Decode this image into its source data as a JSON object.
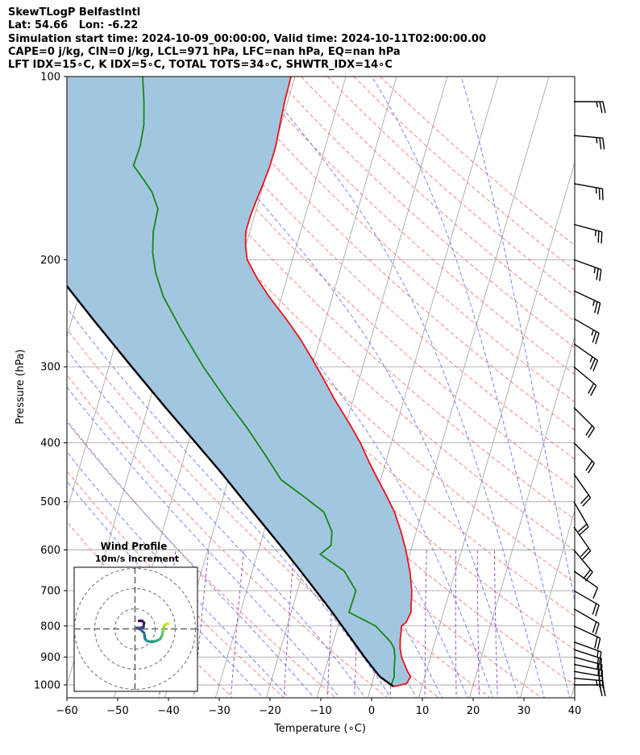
{
  "header": {
    "line1": "SkewTLogP BelfastIntl",
    "line2": "Lat: 54.66   Lon: -6.22",
    "line3": "Simulation start time: 2024-10-09_00:00:00, Valid time: 2024-10-11T02:00:00.00",
    "line4": "CAPE=0 j/kg, CIN=0 j/kg, LCL=971 hPa, LFC=nan hPa, EQ=nan hPa",
    "line5": "LFT IDX=15∘C, K IDX=5∘C, TOTAL TOTS=34∘C, SHWTR_IDX=14∘C"
  },
  "colors": {
    "temperature": "#e8141a",
    "dewpoint": "#138a13",
    "parcel": "#000000",
    "cape_fill": "#a3c6e0",
    "dry_adiabat": "#f07070",
    "moist_adiabat": "#6070f0",
    "mixing_ratio": "#9b3fc0",
    "isotherm": "#aaaaaa"
  },
  "chart_data": [
    {
      "type": "line",
      "subtype": "skew-t log-p",
      "xlabel": "Temperature (∘C)",
      "ylabel": "Pressure (hPa)",
      "xlim": [
        -60,
        40
      ],
      "ylim": [
        1050,
        100
      ],
      "y_scale": "log",
      "x_ticks": [
        "−60",
        "−50",
        "−40",
        "−30",
        "−20",
        "−10",
        "0",
        "10",
        "20",
        "30",
        "40"
      ],
      "x_tick_values": [
        -60,
        -50,
        -40,
        -30,
        -20,
        -10,
        0,
        10,
        20,
        30,
        40
      ],
      "y_ticks": [
        "1000",
        "900",
        "800",
        "700",
        "600",
        "500",
        "400",
        "300",
        "200",
        "100"
      ],
      "y_tick_values": [
        1000,
        900,
        800,
        700,
        600,
        500,
        400,
        300,
        200,
        100
      ],
      "grid": true,
      "series": [
        {
          "key": "temperature",
          "pressure": [
            1007,
            995,
            970,
            950,
            920,
            900,
            870,
            840,
            820,
            800,
            790,
            760,
            740,
            720,
            700,
            650,
            600,
            560,
            520,
            490,
            460,
            430,
            400,
            370,
            340,
            310,
            290,
            270,
            250,
            230,
            215,
            200,
            190,
            180,
            170,
            160,
            150,
            140,
            130,
            120,
            110,
            100
          ],
          "temp": [
            4.3,
            6.8,
            7.2,
            6.3,
            5.1,
            4.3,
            3.5,
            3.0,
            2.8,
            2.5,
            3.2,
            3.6,
            3.2,
            2.9,
            2.5,
            1.0,
            -1.0,
            -3.0,
            -5.4,
            -7.8,
            -10.5,
            -13.3,
            -16.1,
            -19.6,
            -23.6,
            -27.6,
            -30.6,
            -33.9,
            -37.9,
            -42.5,
            -45.8,
            -48.9,
            -50.0,
            -50.8,
            -50.8,
            -50.5,
            -50.1,
            -49.8,
            -49.8,
            -50.2,
            -50.6,
            -50.8
          ]
        },
        {
          "key": "dewpoint",
          "pressure": [
            1007,
            995,
            970,
            940,
            900,
            870,
            850,
            800,
            760,
            700,
            650,
            610,
            590,
            560,
            520,
            490,
            460,
            420,
            380,
            340,
            300,
            260,
            230,
            210,
            195,
            180,
            165,
            155,
            148,
            140,
            130,
            120,
            110,
            100
          ],
          "temp": [
            4.3,
            3.9,
            4.0,
            3.5,
            3.0,
            2.3,
            1.3,
            -2.6,
            -8.6,
            -8.5,
            -11.9,
            -17.6,
            -16.0,
            -16.6,
            -19.3,
            -24.2,
            -29.6,
            -34.0,
            -39.0,
            -45.0,
            -51.4,
            -58.0,
            -63.3,
            -66.2,
            -67.9,
            -69.0,
            -69.4,
            -71.5,
            -73.8,
            -76.7,
            -76.5,
            -77.0,
            -78.3,
            -80.0
          ]
        },
        {
          "key": "parcel",
          "pressure": [
            1005,
            970,
            950,
            900,
            850,
            800,
            750,
            700,
            650,
            600,
            550,
            500,
            450,
            400,
            350,
            300,
            250,
            200,
            175,
            150,
            125,
            100
          ],
          "temp": [
            4.3,
            1.2,
            0.0,
            -3.0,
            -6.0,
            -9.2,
            -12.6,
            -16.4,
            -20.5,
            -25.0,
            -30.0,
            -35.5,
            -41.5,
            -48.5,
            -56.5,
            -65.5,
            -76.0,
            -88.5,
            -96.0,
            -104.5,
            -114.0,
            -125.0
          ]
        }
      ]
    },
    {
      "type": "scatter",
      "subtype": "hodograph",
      "title": "Wind Profile",
      "subtitle": "10m/s increment",
      "rings_ms": [
        10,
        20,
        30
      ]
    }
  ],
  "wind_barbs": [
    {
      "p": 1000,
      "dir": 270,
      "kt": 22
    },
    {
      "p": 975,
      "dir": 275,
      "kt": 25
    },
    {
      "p": 950,
      "dir": 280,
      "kt": 22
    },
    {
      "p": 925,
      "dir": 282,
      "kt": 20
    },
    {
      "p": 900,
      "dir": 285,
      "kt": 20
    },
    {
      "p": 875,
      "dir": 288,
      "kt": 18
    },
    {
      "p": 850,
      "dir": 290,
      "kt": 15
    },
    {
      "p": 800,
      "dir": 295,
      "kt": 20
    },
    {
      "p": 750,
      "dir": 300,
      "kt": 20
    },
    {
      "p": 700,
      "dir": 300,
      "kt": 20
    },
    {
      "p": 650,
      "dir": 305,
      "kt": 12
    },
    {
      "p": 600,
      "dir": 320,
      "kt": 20
    },
    {
      "p": 550,
      "dir": 325,
      "kt": 20
    },
    {
      "p": 500,
      "dir": 330,
      "kt": 20
    },
    {
      "p": 450,
      "dir": 325,
      "kt": 20
    },
    {
      "p": 400,
      "dir": 315,
      "kt": 20
    },
    {
      "p": 350,
      "dir": 315,
      "kt": 20
    },
    {
      "p": 300,
      "dir": 310,
      "kt": 20
    },
    {
      "p": 275,
      "dir": 305,
      "kt": 25
    },
    {
      "p": 250,
      "dir": 300,
      "kt": 25
    },
    {
      "p": 225,
      "dir": 295,
      "kt": 25
    },
    {
      "p": 200,
      "dir": 290,
      "kt": 25
    },
    {
      "p": 175,
      "dir": 285,
      "kt": 25
    },
    {
      "p": 150,
      "dir": 280,
      "kt": 25
    },
    {
      "p": 125,
      "dir": 275,
      "kt": 25
    },
    {
      "p": 110,
      "dir": 270,
      "kt": 25
    }
  ],
  "hodograph": [
    {
      "u": 2,
      "v": 4,
      "c": "#440154"
    },
    {
      "u": 3.5,
      "v": 4,
      "c": "#46125f"
    },
    {
      "u": 4.5,
      "v": 3,
      "c": "#482071"
    },
    {
      "u": 4.2,
      "v": 1,
      "c": "#482878"
    },
    {
      "u": 3,
      "v": 0.5,
      "c": "#3e4989"
    },
    {
      "u": 1,
      "v": 0.5,
      "c": "#3b528b"
    },
    {
      "u": 3,
      "v": -0.5,
      "c": "#31688e"
    },
    {
      "u": 4.5,
      "v": -2,
      "c": "#2c728e"
    },
    {
      "u": 5,
      "v": -5,
      "c": "#26828e"
    },
    {
      "u": 6,
      "v": -6,
      "c": "#21918c"
    },
    {
      "u": 8,
      "v": -6.5,
      "c": "#1fa088"
    },
    {
      "u": 10.5,
      "v": -6,
      "c": "#28ae80"
    },
    {
      "u": 12.5,
      "v": -5,
      "c": "#3fbc73"
    },
    {
      "u": 13.5,
      "v": -3,
      "c": "#5ec962"
    },
    {
      "u": 14,
      "v": -0.5,
      "c": "#84d44b"
    },
    {
      "u": 14.5,
      "v": 1.5,
      "c": "#addc30"
    },
    {
      "u": 15.5,
      "v": 2.5,
      "c": "#d8e219"
    },
    {
      "u": 16.5,
      "v": 2.5,
      "c": "#fde725"
    }
  ]
}
